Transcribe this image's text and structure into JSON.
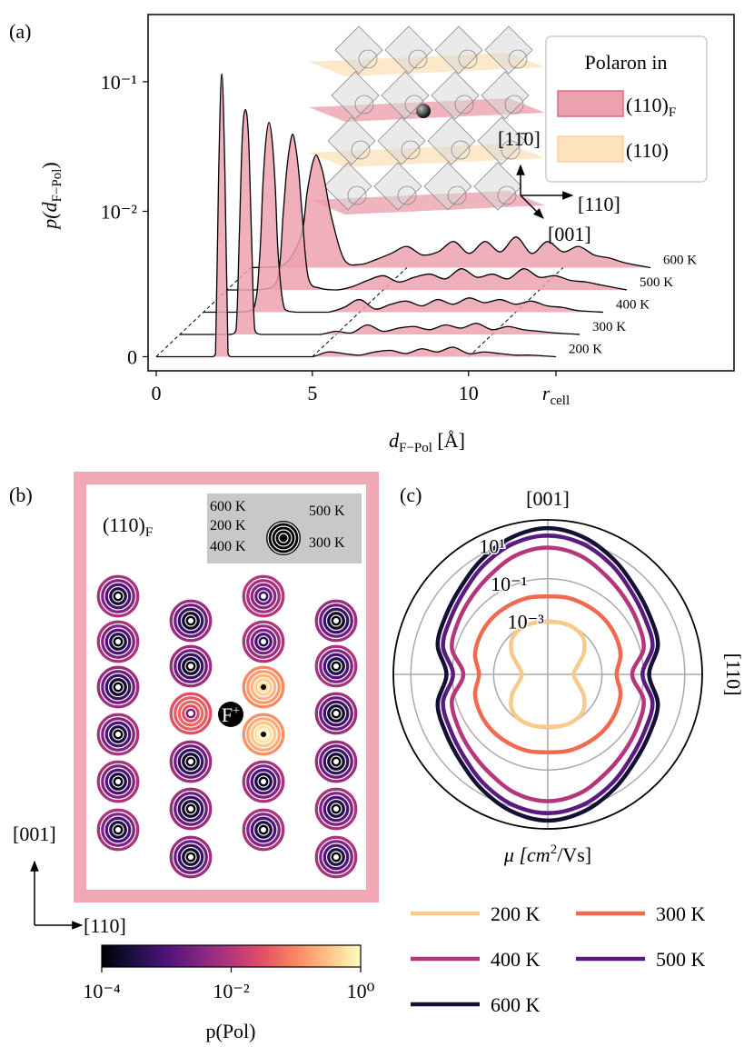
{
  "chart_data": [
    {
      "type": "line",
      "label": "(a)",
      "ylabel": [
        "p(d",
        "F−Pol",
        ")"
      ],
      "xlabel": [
        "d",
        "F−Pol",
        " [Å]"
      ],
      "x": [
        0,
        1.0,
        1.6,
        1.8,
        1.9,
        2.0,
        2.1,
        2.2,
        2.3,
        2.4,
        2.6,
        3.0,
        3.5,
        4.0,
        4.5,
        5.0,
        5.5,
        6.0,
        6.5,
        7.0,
        7.5,
        8.0,
        8.5,
        9.0,
        9.5,
        10.0,
        10.5,
        11.0,
        11.5,
        12.0,
        12.8
      ],
      "series": [
        {
          "name": "200 K",
          "values": [
            0,
            0,
            0,
            0,
            0.0002,
            0.02,
            0.115,
            0.02,
            0.0002,
            0,
            0,
            0,
            0,
            0,
            0,
            0,
            0.0003,
            0.0002,
            0.0001,
            0.0003,
            0.0004,
            0.0002,
            0.0005,
            0.0003,
            0.0006,
            0.0002,
            0.0003,
            0.0002,
            0.0001,
            0.0001,
            0
          ]
        },
        {
          "name": "300 K",
          "values": [
            0,
            0,
            0,
            0.0003,
            0.004,
            0.025,
            0.041,
            0.025,
            0.004,
            0.0003,
            0,
            0,
            0,
            0,
            0,
            0.0002,
            0.0001,
            0.0006,
            0.0002,
            0.0004,
            0.0005,
            0.0003,
            0.0006,
            0.0004,
            0.0007,
            0.0003,
            0.0005,
            0.0003,
            0.0002,
            0.0001,
            0
          ]
        },
        {
          "name": "400 K",
          "values": [
            0,
            0,
            0.0002,
            0.002,
            0.007,
            0.016,
            0.022,
            0.016,
            0.007,
            0.002,
            0.0002,
            0,
            0,
            0,
            0.0003,
            0.0008,
            0.0002,
            0.0005,
            0.0007,
            0.0004,
            0.0008,
            0.0005,
            0.0009,
            0.0006,
            0.0008,
            0.0005,
            0.0007,
            0.0004,
            0.0003,
            0.0001,
            0
          ]
        },
        {
          "name": "500 K",
          "values": [
            0,
            0,
            0.0006,
            0.003,
            0.006,
            0.0095,
            0.012,
            0.0095,
            0.006,
            0.003,
            0.0008,
            0.0001,
            0,
            0.0002,
            0.0006,
            0.0009,
            0.0005,
            0.0008,
            0.001,
            0.0007,
            0.0011,
            0.0008,
            0.001,
            0.0007,
            0.0011,
            0.0008,
            0.0009,
            0.0006,
            0.0005,
            0.0003,
            0
          ]
        },
        {
          "name": "600 K",
          "values": [
            0,
            0.0001,
            0.0013,
            0.0028,
            0.0039,
            0.005,
            0.0056,
            0.005,
            0.0042,
            0.0032,
            0.0018,
            0.0005,
            0.0002,
            0.0005,
            0.0009,
            0.0011,
            0.0008,
            0.001,
            0.0012,
            0.0009,
            0.0012,
            0.001,
            0.0013,
            0.0009,
            0.0012,
            0.001,
            0.0011,
            0.0008,
            0.0006,
            0.0003,
            0
          ]
        }
      ],
      "xlim": [
        -0.26,
        18.5
      ],
      "xticks": [
        0,
        5,
        10
      ],
      "rcell": {
        "value": 12.8,
        "label": [
          "r",
          "cell"
        ]
      },
      "ylim": [
        -0.00089,
        0.33
      ],
      "yscale": "symlog",
      "linthresh": 0.001,
      "linscale": 0.11,
      "yticks": [
        0,
        {
          "value": 0.01,
          "label": "10⁻²"
        },
        {
          "value": 0.1,
          "label": "10⁻¹"
        }
      ],
      "legend": {
        "title": "Polaron in",
        "items": [
          {
            "label": [
              "(110)",
              "F"
            ],
            "color": "#eca1af",
            "edge": "#d86a82"
          },
          {
            "label": [
              "(110)"
            ],
            "color": "#fde2bd",
            "edge": "#f9d09c"
          }
        ]
      },
      "directions": [
        "[11̄0]",
        "[110]",
        "[001]"
      ],
      "line_color": "#000000"
    },
    {
      "type": "heatmap",
      "label": "(b)",
      "title": [
        "(110)",
        "F"
      ],
      "defect": [
        "F",
        "+"
      ],
      "inset_labels": [
        "600 K",
        "500 K",
        "200 K",
        "400 K",
        "300 K"
      ],
      "sites": [
        [
          0.0001,
          0.0003,
          0.001,
          0.003,
          0.008
        ],
        [
          0.0001,
          0.0003,
          0.001,
          0.003,
          0.008
        ],
        [
          0.0001,
          0.0002,
          0.0006,
          0.002,
          0.006
        ],
        [
          0.0001,
          0.0003,
          0.001,
          0.003,
          0.008
        ],
        [
          0.0001,
          0.0003,
          0.001,
          0.003,
          0.008
        ],
        [
          0.0001,
          0.0003,
          0.001,
          0.003,
          0.008
        ],
        [
          0.0001,
          0.0002,
          0.0006,
          0.002,
          0.006
        ],
        [
          0.0001,
          0.0002,
          0.0006,
          0.002,
          0.006
        ],
        [
          0.002,
          0.03,
          0.05,
          0.04,
          0.03
        ],
        [
          0.0001,
          0.0002,
          0.0006,
          0.002,
          0.006
        ],
        [
          0.0001,
          0.0002,
          0.0006,
          0.002,
          0.006
        ],
        [
          0.0001,
          0.0002,
          0.0006,
          0.002,
          0.006
        ],
        [
          0.0005,
          0.002,
          0.004,
          0.007,
          0.01
        ],
        [
          0.0003,
          0.001,
          0.003,
          0.006,
          0.009
        ],
        [
          0.5,
          0.4,
          0.25,
          0.15,
          0.1
        ],
        [
          0.9,
          0.6,
          0.35,
          0.2,
          0.12
        ],
        [
          0.0001,
          0.0003,
          0.001,
          0.003,
          0.008
        ],
        [
          0.0001,
          0.0003,
          0.001,
          0.003,
          0.008
        ],
        [
          0.0001,
          0.0002,
          0.0006,
          0.002,
          0.006
        ],
        [
          0.0001,
          0.0003,
          0.001,
          0.003,
          0.008
        ],
        [
          0.0001,
          0.0002,
          0.0006,
          0.002,
          0.006
        ],
        [
          0.0001,
          0.0002,
          0.0006,
          0.002,
          0.006
        ],
        [
          0.0001,
          0.0003,
          0.001,
          0.003,
          0.008
        ],
        [
          0.0001,
          0.0003,
          0.001,
          0.003,
          0.008
        ]
      ],
      "colormap": [
        "#000004",
        "#1c1044",
        "#4f127b",
        "#812581",
        "#b5367a",
        "#e55064",
        "#fb8761",
        "#fec287",
        "#fcfdbf"
      ],
      "cbar": {
        "lim": [
          0.0001,
          1
        ],
        "scale": "log",
        "label": "p(Pol)",
        "ticks": [
          {
            "value": 0.0001,
            "label": "10⁻⁴"
          },
          {
            "value": 0.01,
            "label": "10⁻²"
          },
          {
            "value": 1,
            "label": "10⁰"
          }
        ]
      },
      "directions": [
        "[001]",
        "[110]"
      ],
      "frame_color": "#f0a8b5"
    },
    {
      "type": "polar",
      "label": "(c)",
      "top_label": "[001]",
      "right_label": "[110]",
      "rlabel": [
        "μ [cm",
        "2",
        "/Vs]"
      ],
      "theta": [
        0,
        15,
        30,
        45,
        60,
        75,
        90,
        105,
        120,
        135,
        150,
        165,
        180,
        195,
        210,
        225,
        240,
        255,
        270,
        285,
        300,
        315,
        330,
        345
      ],
      "rlim": [
        2.4e-06,
        70
      ],
      "rscale": "log",
      "grid": true,
      "rticks": [
        {
          "value": 0.001,
          "label": "10⁻³"
        },
        {
          "value": 0.1,
          "label": "10⁻¹"
        },
        {
          "value": 10,
          "label": "10¹"
        }
      ],
      "series": [
        {
          "name": "200 K",
          "color": "#fbc98a",
          "values": [
            4.2e-05,
            6.9e-05,
            0.00024,
            0.00066,
            0.0009,
            0.0009,
            0.00081,
            0.0009,
            0.0009,
            0.00066,
            0.00024,
            6.9e-05,
            4.2e-05,
            6.9e-05,
            0.00024,
            0.00066,
            0.0009,
            0.0009,
            0.00081,
            0.0009,
            0.0009,
            0.00066,
            0.00024,
            6.9e-05
          ]
        },
        {
          "name": "300 K",
          "color": "#f2694f",
          "values": [
            0.0051,
            0.0105,
            0.014,
            0.016,
            0.016,
            0.016,
            0.014,
            0.016,
            0.016,
            0.016,
            0.014,
            0.0105,
            0.0051,
            0.0105,
            0.014,
            0.016,
            0.016,
            0.016,
            0.014,
            0.016,
            0.016,
            0.016,
            0.014,
            0.0105
          ]
        },
        {
          "name": "400 K",
          "color": "#b5367a",
          "values": [
            0.029,
            0.15,
            0.25,
            0.42,
            0.85,
            2.15,
            3.2,
            2.15,
            0.85,
            0.42,
            0.25,
            0.15,
            0.029,
            0.15,
            0.25,
            0.42,
            0.85,
            2.15,
            3.2,
            2.15,
            0.85,
            0.42,
            0.25,
            0.15
          ]
        },
        {
          "name": "500 K",
          "color": "#5a1a80",
          "values": [
            0.091,
            0.42,
            0.63,
            1.17,
            3.2,
            8.1,
            12.3,
            8.1,
            3.2,
            1.17,
            0.63,
            0.42,
            0.091,
            0.42,
            0.63,
            1.17,
            3.2,
            8.1,
            12.3,
            8.1,
            3.2,
            1.17,
            0.63,
            0.42
          ]
        },
        {
          "name": "600 K",
          "color": "#150e37",
          "values": [
            0.19,
            0.78,
            1.17,
            2.15,
            6,
            16.6,
            27.8,
            16.6,
            6,
            2.15,
            1.17,
            0.78,
            0.19,
            0.78,
            1.17,
            2.15,
            6,
            16.6,
            27.8,
            16.6,
            6,
            2.15,
            1.17,
            0.78
          ]
        }
      ]
    }
  ]
}
